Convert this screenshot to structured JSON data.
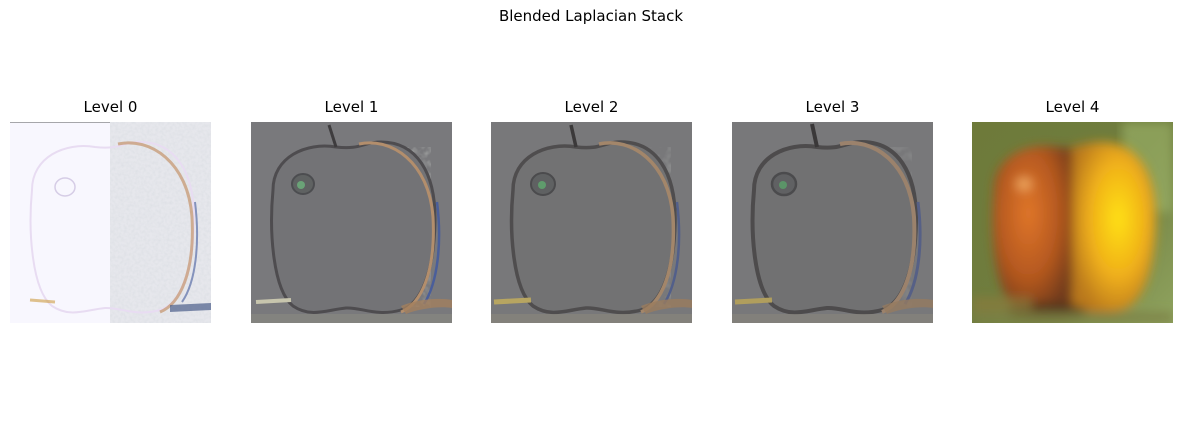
{
  "figure": {
    "title": "Blended Laplacian Stack"
  },
  "panels": [
    {
      "title": "Level 0"
    },
    {
      "title": "Level 1"
    },
    {
      "title": "Level 2"
    },
    {
      "title": "Level 3"
    },
    {
      "title": "Level 4"
    }
  ]
}
